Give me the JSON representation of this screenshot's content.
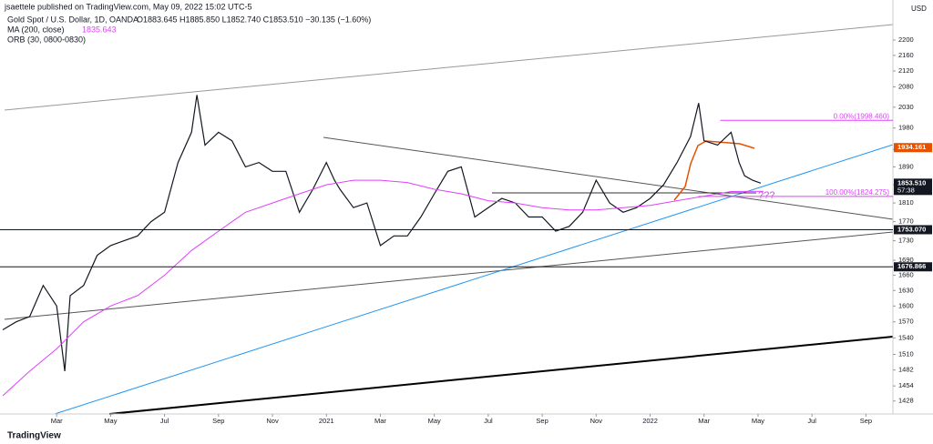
{
  "publisher": "jsaettele published on TradingView.com, May 09, 2022 15:02 UTC-5",
  "footer": "TradingView",
  "chart_data": {
    "type": "line",
    "title": "Gold Spot / U.S. Dollar, 1D, OANDA",
    "ohlc": "O1883.645 H1885.850 L1852.740 C1853.510 −30.135 (−1.60%)",
    "indicator": "ORB (30, 0800-0830)",
    "unit": "USD",
    "log_scale": true,
    "xlim": [
      -0.1,
      33
    ],
    "ylim": [
      1406,
      2308
    ],
    "xticks": [
      {
        "value": 2,
        "label": "Mar"
      },
      {
        "value": 4,
        "label": "May"
      },
      {
        "value": 6,
        "label": "Jul"
      },
      {
        "value": 8,
        "label": "Sep"
      },
      {
        "value": 10,
        "label": "Nov"
      },
      {
        "value": 12,
        "label": "2021"
      },
      {
        "value": 14,
        "label": "Mar"
      },
      {
        "value": 16,
        "label": "May"
      },
      {
        "value": 18,
        "label": "Jul"
      },
      {
        "value": 20,
        "label": "Sep"
      },
      {
        "value": 22,
        "label": "Nov"
      },
      {
        "value": 24,
        "label": "2022"
      },
      {
        "value": 26,
        "label": "Mar"
      },
      {
        "value": 28,
        "label": "May"
      },
      {
        "value": 30,
        "label": "Jul"
      },
      {
        "value": 32,
        "label": "Sep"
      }
    ],
    "yticks": [
      2200,
      2160,
      2120,
      2080,
      2030,
      1980,
      1930,
      1890,
      1850,
      1810,
      1770,
      1730,
      1690,
      1660,
      1630,
      1600,
      1570,
      1540,
      1510,
      1482,
      1454,
      1428
    ],
    "series": [
      {
        "name": "Gold Spot / U.S. Dollar, 1D, OANDA",
        "color": "#131722",
        "x": [
          0,
          0.5,
          1,
          1.5,
          2,
          2.3,
          2.5,
          3,
          3.5,
          4,
          4.5,
          5,
          5.5,
          6,
          6.5,
          7,
          7.2,
          7.5,
          8,
          8.5,
          9,
          9.5,
          10,
          10.5,
          11,
          11.5,
          12,
          12.3,
          12.5,
          13,
          13.5,
          14,
          14.5,
          15,
          15.5,
          16,
          16.5,
          17,
          17.5,
          18,
          18.5,
          19,
          19.5,
          20,
          20.5,
          21,
          21.5,
          22,
          22.5,
          23,
          23.5,
          24,
          24.5,
          25,
          25.5,
          25.8,
          26,
          26.5,
          27,
          27.3,
          27.5,
          27.8,
          28.1
        ],
        "values": [
          1555,
          1570,
          1580,
          1640,
          1600,
          1480,
          1620,
          1640,
          1700,
          1720,
          1730,
          1740,
          1770,
          1790,
          1900,
          1970,
          2060,
          1940,
          1970,
          1950,
          1890,
          1900,
          1880,
          1880,
          1790,
          1840,
          1900,
          1860,
          1840,
          1800,
          1810,
          1720,
          1740,
          1740,
          1780,
          1830,
          1880,
          1890,
          1780,
          1800,
          1820,
          1810,
          1780,
          1780,
          1750,
          1760,
          1790,
          1860,
          1810,
          1790,
          1800,
          1820,
          1850,
          1900,
          1960,
          2040,
          1950,
          1940,
          1970,
          1900,
          1870,
          1860,
          1853.51
        ]
      },
      {
        "name": "MA (200, close)",
        "color": "#e040fb",
        "last": 1835.643,
        "x": [
          0,
          1,
          2,
          3,
          4,
          5,
          6,
          7,
          8,
          9,
          10,
          11,
          12,
          13,
          14,
          15,
          16,
          17,
          18,
          19,
          20,
          21,
          22,
          23,
          24,
          25,
          26,
          27,
          28.2
        ],
        "values": [
          1437,
          1480,
          1520,
          1570,
          1600,
          1620,
          1660,
          1710,
          1750,
          1790,
          1810,
          1830,
          1850,
          1860,
          1860,
          1855,
          1840,
          1830,
          1815,
          1810,
          1800,
          1795,
          1795,
          1800,
          1805,
          1815,
          1825,
          1835,
          1835.643
        ]
      }
    ],
    "levels": [
      {
        "value": 1934.161,
        "color": "#e65100",
        "line": false
      },
      {
        "value": 1853.51,
        "label": "1853.510",
        "color": "#131722",
        "line": false,
        "countdown": "57:38"
      },
      {
        "value": 1753.07,
        "label": "1753.070",
        "color": "#131722",
        "line": true
      },
      {
        "value": 1676.866,
        "color": "#131722",
        "line": true
      }
    ],
    "fib_levels": [
      {
        "value": 1998.46,
        "label": "0.00%(1998.460)",
        "start": 26.6
      },
      {
        "value": 1824.275,
        "label": "100.00%(1824.275)",
        "start": 25.8
      }
    ],
    "annotation": "???"
  }
}
